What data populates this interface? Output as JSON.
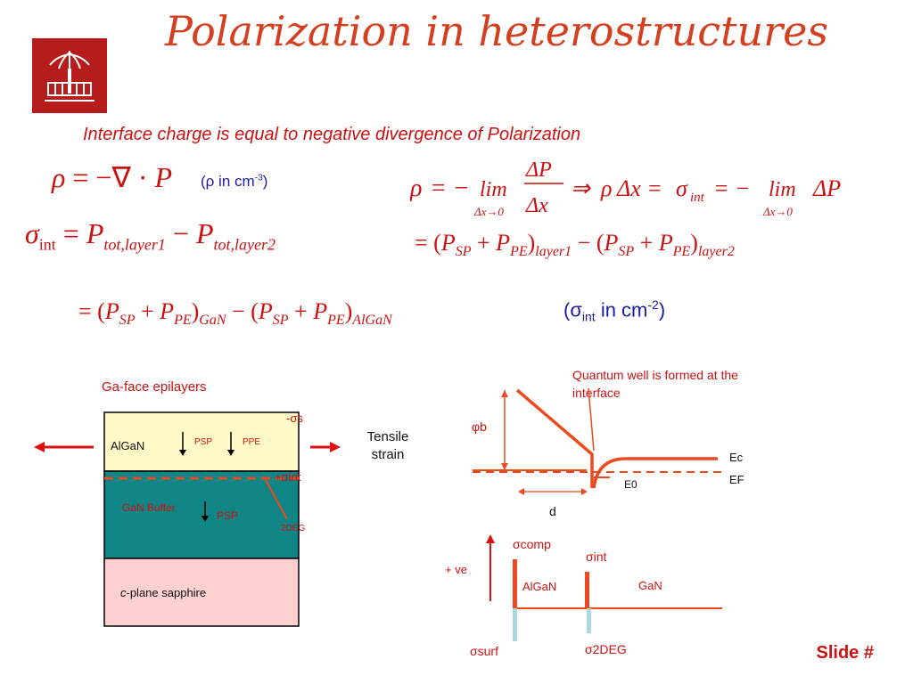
{
  "slide": {
    "title": "Polarization in heterostructures",
    "subtitle": "Interface charge is equal to negative divergence of Polarization",
    "slide_number": "Slide #"
  },
  "equations": {
    "unit_rho_prefix": "(ρ in cm",
    "unit_rho_exp": "-3",
    "unit_sigma_prefix": "(σ",
    "unit_sigma_sub": "int",
    "unit_sigma_mid": " in cm",
    "unit_sigma_exp": "-2",
    "close_paren": ")"
  },
  "layers_diagram": {
    "heading": "Ga-face epilayers",
    "sigma_s": "-σs",
    "algan": "AlGaN",
    "psp_top": "PSP",
    "ppe_top": "PPE",
    "sigma_int": "+σint",
    "gan_buffer": "GaN Buffer",
    "psp_bottom": "PSP",
    "deg": "2DEG",
    "sapphire_italic": "c",
    "sapphire_rest": "-plane sapphire",
    "strain_line1": "Tensile",
    "strain_line2": "strain"
  },
  "band_diagram": {
    "note_line1": "Quantum well is formed at the",
    "note_line2": "interface",
    "phi_b": "φb",
    "ec": "Ec",
    "ef": "EF",
    "e0": "E0",
    "d": "d"
  },
  "charge_diagram": {
    "sigma_comp": "σcomp",
    "sigma_int": "σint",
    "plus_ve": "+ ve",
    "algan": "AlGaN",
    "gan": "GaN",
    "sigma_surf": "σsurf",
    "sigma_2deg": "σ2DEG"
  },
  "colors": {
    "accent": "#cc1111",
    "title": "#d4401f",
    "algan": "#fffac8",
    "gan": "#0f8585",
    "sapphire": "#ffd0d0",
    "band": "#ee4a1f",
    "negative": "#a8d8e0"
  }
}
